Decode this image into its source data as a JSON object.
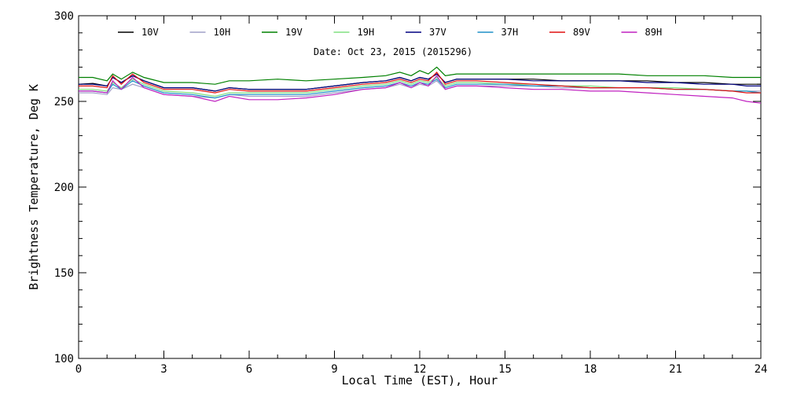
{
  "chart_data": {
    "type": "line",
    "title": "",
    "annotation": "Date: Oct 23, 2015 (2015296)",
    "xlabel": "Local Time (EST), Hour",
    "ylabel": "Brightness Temperature, Deg K",
    "xlim": [
      0,
      24
    ],
    "ylim": [
      100,
      300
    ],
    "xticks": [
      0,
      3,
      6,
      9,
      12,
      15,
      18,
      21,
      24
    ],
    "yticks": [
      100,
      150,
      200,
      250,
      300
    ],
    "grid": false,
    "legend_position": "top",
    "x": [
      0,
      0.5,
      1,
      1.2,
      1.5,
      1.9,
      2.3,
      3,
      4,
      4.8,
      5.3,
      6,
      7,
      8,
      9,
      10,
      10.8,
      11.3,
      11.7,
      12,
      12.3,
      12.6,
      12.9,
      13.3,
      14,
      15,
      16,
      17,
      18,
      19,
      20,
      21,
      22,
      23,
      23.5,
      24
    ],
    "series": [
      {
        "name": "10V",
        "color": "#000000",
        "values": [
          260,
          260.5,
          259,
          264,
          261,
          265,
          262,
          258,
          258,
          256,
          258,
          257,
          257,
          257,
          259,
          261,
          262,
          264,
          262,
          264,
          263,
          266,
          261,
          263,
          263,
          263,
          263,
          262,
          262,
          262,
          262,
          261,
          261,
          260,
          260,
          260
        ]
      },
      {
        "name": "10H",
        "color": "#a0a0c8",
        "values": [
          255,
          255,
          254,
          258,
          257,
          260,
          258,
          254,
          253,
          252,
          254,
          253,
          253,
          253,
          255,
          257,
          258,
          260,
          258,
          260,
          259,
          262,
          257,
          259,
          259,
          259,
          259,
          258,
          258,
          258,
          258,
          257,
          257,
          256,
          256,
          256
        ]
      },
      {
        "name": "19V",
        "color": "#008000",
        "values": [
          264,
          264,
          262,
          266,
          263,
          267,
          264,
          261,
          261,
          260,
          262,
          262,
          263,
          262,
          263,
          264,
          265,
          267,
          265,
          268,
          266,
          270,
          265,
          266,
          266,
          266,
          266,
          266,
          266,
          266,
          265,
          265,
          265,
          264,
          264,
          264
        ]
      },
      {
        "name": "19H",
        "color": "#80e080",
        "values": [
          257,
          257,
          256,
          261,
          258,
          263,
          260,
          256,
          255,
          253,
          255,
          255,
          255,
          255,
          257,
          259,
          260,
          262,
          260,
          262,
          261,
          264,
          259,
          261,
          261,
          260,
          260,
          259,
          259,
          258,
          258,
          258,
          257,
          256,
          256,
          255
        ]
      },
      {
        "name": "37V",
        "color": "#000080",
        "values": [
          260,
          260,
          259,
          264,
          261,
          265,
          262,
          258,
          258,
          256,
          258,
          257,
          257,
          257,
          259,
          261,
          262,
          264,
          262,
          264,
          263,
          266,
          261,
          263,
          263,
          263,
          262,
          262,
          262,
          262,
          261,
          261,
          260,
          260,
          259,
          259
        ]
      },
      {
        "name": "37H",
        "color": "#1e90c8",
        "values": [
          256,
          256,
          255,
          260,
          257,
          262,
          259,
          255,
          254,
          252,
          254,
          254,
          254,
          254,
          256,
          258,
          259,
          261,
          259,
          261,
          260,
          263,
          258,
          260,
          260,
          260,
          259,
          259,
          258,
          258,
          258,
          257,
          257,
          256,
          256,
          255
        ]
      },
      {
        "name": "89V",
        "color": "#e01010",
        "values": [
          259,
          259,
          258,
          265,
          260,
          266,
          261,
          257,
          257,
          255,
          257,
          256,
          256,
          256,
          258,
          260,
          261,
          263,
          261,
          263,
          262,
          267,
          260,
          262,
          262,
          261,
          260,
          259,
          258,
          258,
          258,
          257,
          257,
          256,
          255,
          255
        ]
      },
      {
        "name": "89H",
        "color": "#c020c0",
        "values": [
          256,
          256,
          255,
          262,
          257,
          264,
          258,
          254,
          253,
          250,
          253,
          251,
          251,
          252,
          254,
          257,
          258,
          261,
          258,
          261,
          259,
          265,
          257,
          259,
          259,
          258,
          257,
          257,
          256,
          256,
          255,
          254,
          253,
          252,
          250,
          249
        ]
      }
    ]
  }
}
